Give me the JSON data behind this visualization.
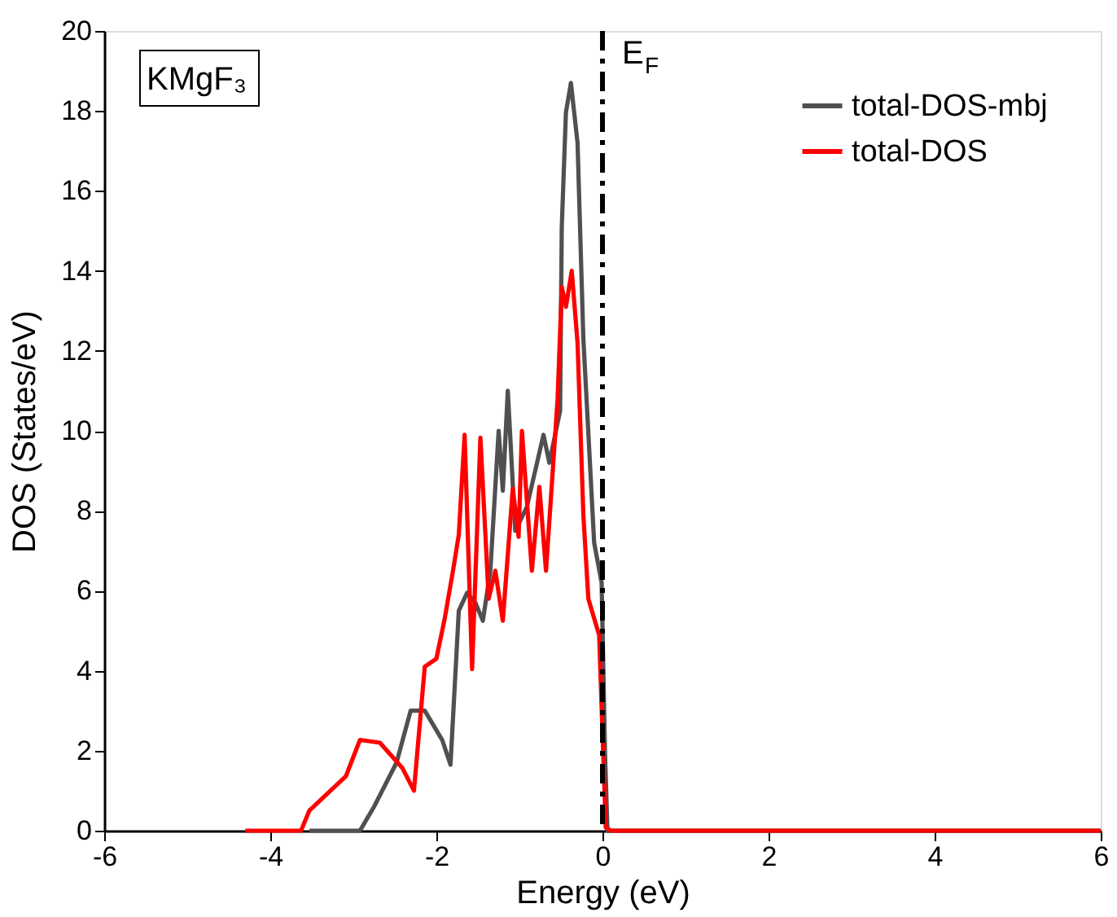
{
  "chart_data": {
    "type": "line",
    "xlabel": "Energy (eV)",
    "ylabel": "DOS (States/eV)",
    "xlim": [
      -6,
      6
    ],
    "xticks": [
      -6,
      -4,
      -2,
      0,
      2,
      4,
      6
    ],
    "ylim": [
      0,
      20
    ],
    "yticks": [
      0,
      2,
      4,
      6,
      8,
      10,
      12,
      14,
      16,
      18,
      20
    ],
    "legend": "top right",
    "grid": false,
    "marker": "none",
    "line_style": "solid",
    "annotations": [
      "KMgF₃"
    ],
    "ref_lines": [
      {
        "axis": "x",
        "value": 0,
        "label": "E$_{F}$",
        "color": "#000000",
        "line_style": "dashdot"
      }
    ],
    "series": [
      {
        "name": "total-DOS-mbj",
        "color": "#505050",
        "x": [
          -3.53,
          -2.92,
          -2.75,
          -2.48,
          -2.31,
          -2.14,
          -1.93,
          -1.83,
          -1.73,
          -1.63,
          -1.53,
          -1.44,
          -1.35,
          -1.25,
          -1.2,
          -1.14,
          -1.05,
          -0.91,
          -0.71,
          -0.64,
          -0.51,
          -0.49,
          -0.44,
          -0.38,
          -0.3,
          -0.23,
          -0.1,
          -0.01,
          0.03,
          0.06,
          6
        ],
        "values": [
          0,
          0,
          0.6,
          1.7,
          3.0,
          3.0,
          2.27,
          1.65,
          5.5,
          5.95,
          5.7,
          5.25,
          6.5,
          10.0,
          8.5,
          11.0,
          7.5,
          8.1,
          9.9,
          9.2,
          10.5,
          15.1,
          17.96,
          18.7,
          17.2,
          12.3,
          7.2,
          6.2,
          2.0,
          0,
          0
        ]
      },
      {
        "name": "total-DOS",
        "color": "#ff0000",
        "x": [
          -4.3,
          -3.63,
          -3.53,
          -3.09,
          -2.92,
          -2.68,
          -2.41,
          -2.27,
          -2.14,
          -2.0,
          -1.9,
          -1.8,
          -1.73,
          -1.66,
          -1.57,
          -1.47,
          -1.37,
          -1.29,
          -1.2,
          -1.08,
          -1.01,
          -0.97,
          -0.85,
          -0.76,
          -0.68,
          -0.54,
          -0.49,
          -0.44,
          -0.37,
          -0.3,
          -0.23,
          -0.17,
          -0.07,
          -0.04,
          0.04,
          0.1,
          6
        ],
        "values": [
          0,
          0,
          0.5,
          1.36,
          2.27,
          2.2,
          1.57,
          1.0,
          4.1,
          4.3,
          5.3,
          6.5,
          7.4,
          9.9,
          4.04,
          9.83,
          5.8,
          6.5,
          5.25,
          8.55,
          7.35,
          10.0,
          6.5,
          8.6,
          6.5,
          10.8,
          13.6,
          13.1,
          14.0,
          12.2,
          7.9,
          5.8,
          5.1,
          4.9,
          0.08,
          0,
          0
        ]
      }
    ]
  }
}
